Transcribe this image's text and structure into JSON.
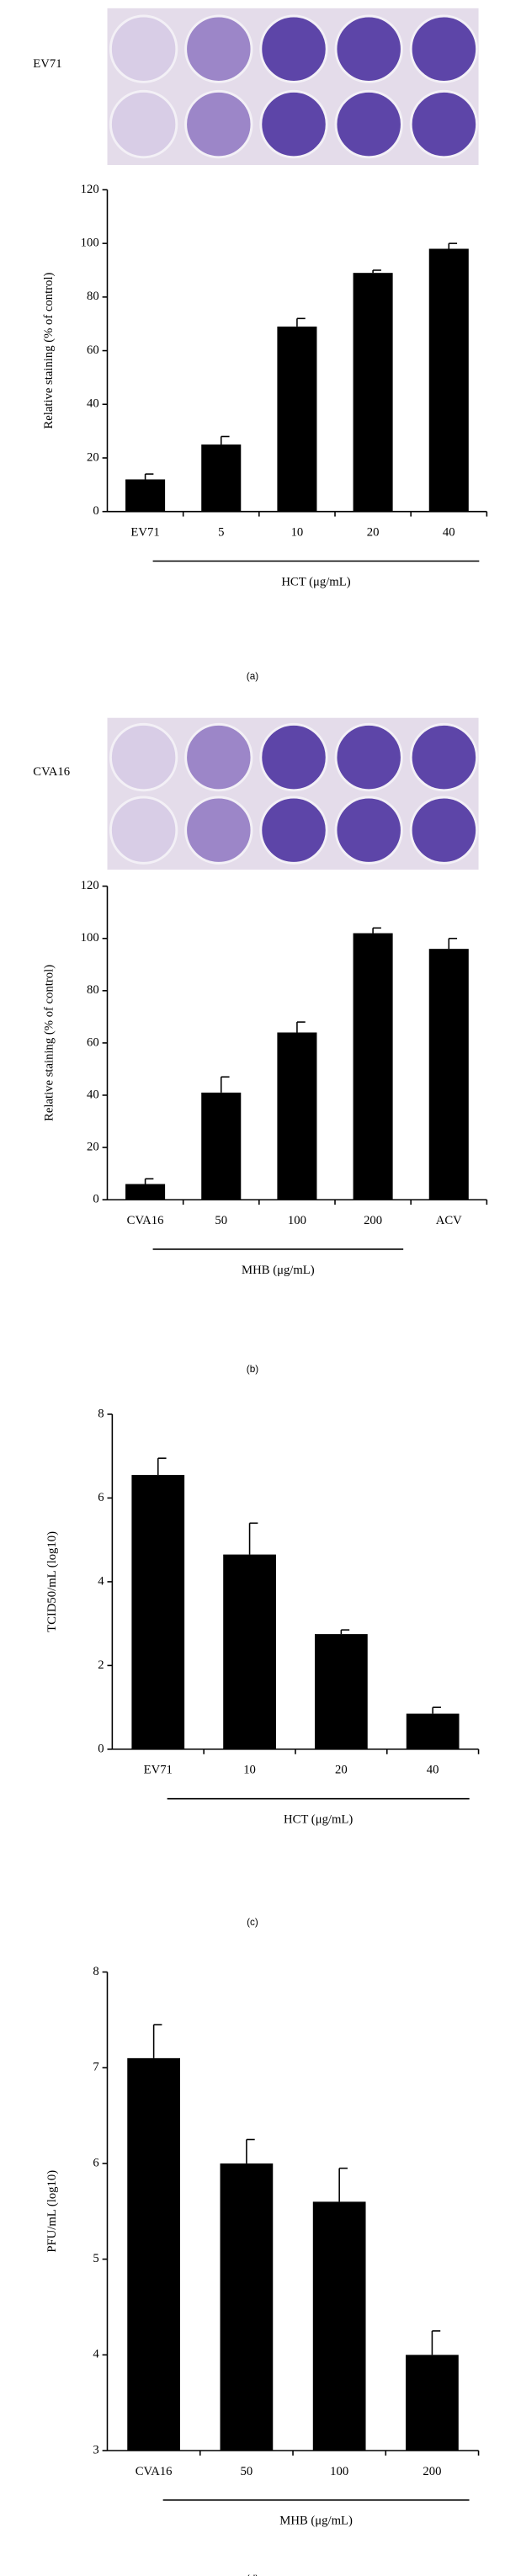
{
  "chart_data": [
    {
      "type": "bar",
      "panel_label": "(a)",
      "plate_label": "EV71",
      "y_label": "Relative staining (% of control)",
      "categories": [
        "EV71",
        "5",
        "10",
        "20",
        "40"
      ],
      "values": [
        12,
        25,
        69,
        89,
        98
      ],
      "errors": [
        2,
        3,
        3,
        1,
        2
      ],
      "group_label": "HCT (μg/mL)",
      "color": "#000000",
      "ylim": [
        0,
        120
      ],
      "yticks": [
        0,
        20,
        40,
        60,
        80,
        100,
        120
      ]
    },
    {
      "type": "bar",
      "panel_label": "(b)",
      "plate_label": "CVA16",
      "y_label": "Relative staining (% of control)",
      "categories": [
        "CVA16",
        "50",
        "100",
        "200",
        "ACV"
      ],
      "values": [
        6,
        41,
        64,
        102,
        96
      ],
      "errors": [
        2,
        6,
        4,
        2,
        4
      ],
      "group_label": "MHB (μg/mL)",
      "color": "#000000",
      "ylim": [
        0,
        120
      ],
      "yticks": [
        0,
        20,
        40,
        60,
        80,
        100,
        120
      ]
    },
    {
      "type": "bar",
      "panel_label": "(c)",
      "y_label": "TCID50/mL (log10)",
      "categories": [
        "EV71",
        "10",
        "20",
        "40"
      ],
      "values": [
        6.55,
        4.65,
        2.75,
        0.85
      ],
      "errors": [
        0.4,
        0.75,
        0.1,
        0.15
      ],
      "group_label": "HCT (μg/mL)",
      "color": "#000000",
      "ylim": [
        0,
        8
      ],
      "yticks": [
        0,
        2,
        4,
        6,
        8
      ]
    },
    {
      "type": "bar",
      "panel_label": "(d)",
      "y_label": "PFU/mL (log10)",
      "categories": [
        "CVA16",
        "50",
        "100",
        "200"
      ],
      "values": [
        7.1,
        6.0,
        5.6,
        4.0
      ],
      "errors": [
        0.35,
        0.25,
        0.35,
        0.25
      ],
      "group_label": "MHB (μg/mL)",
      "color": "#000000",
      "ylim": [
        3,
        8
      ],
      "yticks": [
        3,
        4,
        5,
        6,
        7,
        8
      ]
    }
  ]
}
